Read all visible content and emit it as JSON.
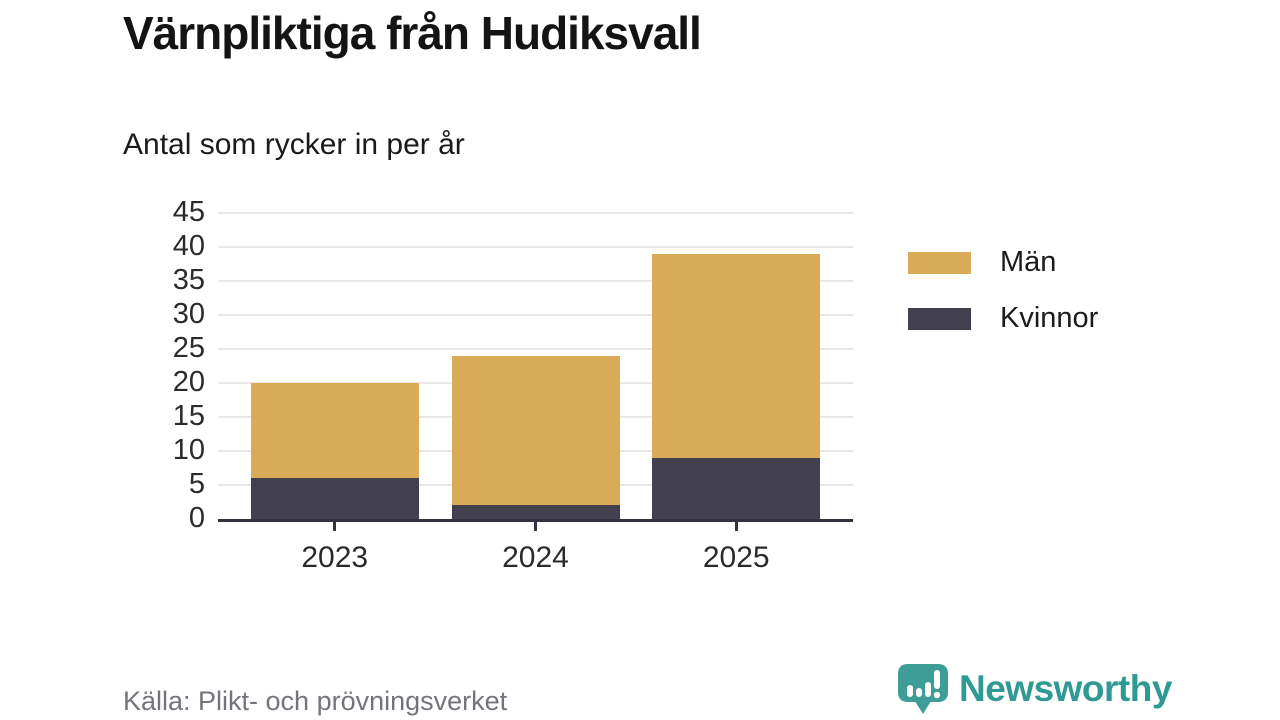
{
  "page": {
    "title": "Värnpliktiga från Hudiksvall",
    "subtitle": "Antal som rycker in per år",
    "source": "Källa: Plikt- och prövningsverket",
    "brand": {
      "name": "Newsworthy",
      "color": "#2F9A93",
      "logo_icon": "newsworthy-speech-bubble-bar-chart-icon"
    }
  },
  "chart_data": {
    "type": "bar",
    "stacked": true,
    "title": "Värnpliktiga från Hudiksvall",
    "subtitle": "Antal som rycker in per år",
    "categories": [
      "2023",
      "2024",
      "2025"
    ],
    "series": [
      {
        "name": "Män",
        "color": "#DAAB58",
        "values": [
          14,
          22,
          30
        ]
      },
      {
        "name": "Kvinnor",
        "color": "#42404D",
        "values": [
          6,
          2,
          9
        ]
      }
    ],
    "stack_order_bottom_to_top": [
      "Kvinnor",
      "Män"
    ],
    "totals": [
      20,
      24,
      39
    ],
    "ylim": [
      0,
      45
    ],
    "yticks": [
      0,
      5,
      10,
      15,
      20,
      25,
      30,
      35,
      40,
      45
    ],
    "grid": true,
    "legend_position": "right",
    "legend": [
      "Män",
      "Kvinnor"
    ],
    "xlabel": "",
    "ylabel": "",
    "colors": {
      "axis": "#33323E",
      "gridline": "#E7E7E7",
      "tick_text": "#2b2b2b"
    }
  }
}
